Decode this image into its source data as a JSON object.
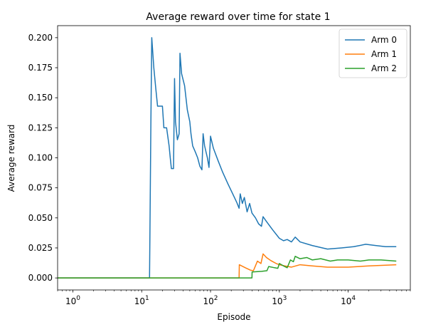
{
  "chart_data": {
    "type": "line",
    "title": "Average reward over time for state 1",
    "xlabel": "Episode",
    "ylabel": "Average reward",
    "xscale": "log",
    "xlim": [
      0.6,
      80000
    ],
    "ylim": [
      -0.01,
      0.21
    ],
    "grid": false,
    "legend_position": "top-right",
    "x_ticks": [
      {
        "value": 1,
        "base": "10",
        "exp": "0"
      },
      {
        "value": 10,
        "base": "10",
        "exp": "1"
      },
      {
        "value": 100,
        "base": "10",
        "exp": "2"
      },
      {
        "value": 1000,
        "base": "10",
        "exp": "3"
      },
      {
        "value": 10000,
        "base": "10",
        "exp": "4"
      }
    ],
    "y_ticks": [
      {
        "value": 0.0,
        "label": "0.000"
      },
      {
        "value": 0.025,
        "label": "0.025"
      },
      {
        "value": 0.05,
        "label": "0.050"
      },
      {
        "value": 0.075,
        "label": "0.075"
      },
      {
        "value": 0.1,
        "label": "0.100"
      },
      {
        "value": 0.125,
        "label": "0.125"
      },
      {
        "value": 0.15,
        "label": "0.150"
      },
      {
        "value": 0.175,
        "label": "0.175"
      },
      {
        "value": 0.2,
        "label": "0.200"
      }
    ],
    "series": [
      {
        "name": "Arm 0",
        "color": "#1f77b4",
        "points": [
          [
            0.6,
            0
          ],
          [
            13,
            0
          ],
          [
            13.6,
            0.13
          ],
          [
            14,
            0.2
          ],
          [
            15,
            0.175
          ],
          [
            16,
            0.158
          ],
          [
            17,
            0.143
          ],
          [
            19,
            0.143
          ],
          [
            20,
            0.143
          ],
          [
            21,
            0.125
          ],
          [
            23,
            0.125
          ],
          [
            25,
            0.11
          ],
          [
            26,
            0.1
          ],
          [
            27,
            0.091
          ],
          [
            29,
            0.091
          ],
          [
            30,
            0.166
          ],
          [
            31,
            0.13
          ],
          [
            33,
            0.115
          ],
          [
            35,
            0.12
          ],
          [
            36,
            0.187
          ],
          [
            38,
            0.17
          ],
          [
            42,
            0.16
          ],
          [
            46,
            0.14
          ],
          [
            50,
            0.13
          ],
          [
            52,
            0.12
          ],
          [
            55,
            0.11
          ],
          [
            60,
            0.105
          ],
          [
            65,
            0.1
          ],
          [
            70,
            0.093
          ],
          [
            75,
            0.09
          ],
          [
            78,
            0.12
          ],
          [
            82,
            0.11
          ],
          [
            90,
            0.1
          ],
          [
            95,
            0.092
          ],
          [
            100,
            0.118
          ],
          [
            110,
            0.108
          ],
          [
            130,
            0.097
          ],
          [
            150,
            0.088
          ],
          [
            180,
            0.078
          ],
          [
            210,
            0.07
          ],
          [
            240,
            0.063
          ],
          [
            260,
            0.058
          ],
          [
            270,
            0.07
          ],
          [
            290,
            0.062
          ],
          [
            310,
            0.067
          ],
          [
            340,
            0.055
          ],
          [
            370,
            0.062
          ],
          [
            400,
            0.054
          ],
          [
            450,
            0.05
          ],
          [
            500,
            0.045
          ],
          [
            550,
            0.043
          ],
          [
            580,
            0.051
          ],
          [
            650,
            0.047
          ],
          [
            800,
            0.04
          ],
          [
            1000,
            0.033
          ],
          [
            1150,
            0.031
          ],
          [
            1300,
            0.032
          ],
          [
            1500,
            0.03
          ],
          [
            1700,
            0.034
          ],
          [
            2000,
            0.03
          ],
          [
            3000,
            0.027
          ],
          [
            5000,
            0.024
          ],
          [
            8000,
            0.025
          ],
          [
            12000,
            0.026
          ],
          [
            18000,
            0.028
          ],
          [
            25000,
            0.027
          ],
          [
            35000,
            0.026
          ],
          [
            50000,
            0.026
          ]
        ]
      },
      {
        "name": "Arm 1",
        "color": "#ff7f0e",
        "points": [
          [
            0.6,
            0
          ],
          [
            260,
            0
          ],
          [
            262,
            0.011
          ],
          [
            320,
            0.0085
          ],
          [
            380,
            0.0065
          ],
          [
            420,
            0.006
          ],
          [
            480,
            0.014
          ],
          [
            540,
            0.012
          ],
          [
            580,
            0.02
          ],
          [
            650,
            0.017
          ],
          [
            750,
            0.0145
          ],
          [
            900,
            0.012
          ],
          [
            1000,
            0.011
          ],
          [
            1200,
            0.01
          ],
          [
            1500,
            0.009
          ],
          [
            2000,
            0.011
          ],
          [
            3000,
            0.01
          ],
          [
            5000,
            0.009
          ],
          [
            10000,
            0.009
          ],
          [
            20000,
            0.01
          ],
          [
            50000,
            0.011
          ]
        ]
      },
      {
        "name": "Arm 2",
        "color": "#2ca02c",
        "points": [
          [
            0.6,
            0
          ],
          [
            400,
            0
          ],
          [
            402,
            0.005
          ],
          [
            550,
            0.0055
          ],
          [
            660,
            0.006
          ],
          [
            700,
            0.0095
          ],
          [
            850,
            0.0085
          ],
          [
            950,
            0.008
          ],
          [
            1000,
            0.012
          ],
          [
            1150,
            0.01
          ],
          [
            1300,
            0.0085
          ],
          [
            1450,
            0.015
          ],
          [
            1600,
            0.0135
          ],
          [
            1700,
            0.018
          ],
          [
            2000,
            0.016
          ],
          [
            2500,
            0.017
          ],
          [
            3000,
            0.015
          ],
          [
            4000,
            0.016
          ],
          [
            5500,
            0.014
          ],
          [
            7000,
            0.015
          ],
          [
            10000,
            0.015
          ],
          [
            15000,
            0.014
          ],
          [
            20000,
            0.015
          ],
          [
            30000,
            0.015
          ],
          [
            50000,
            0.014
          ]
        ]
      }
    ]
  }
}
